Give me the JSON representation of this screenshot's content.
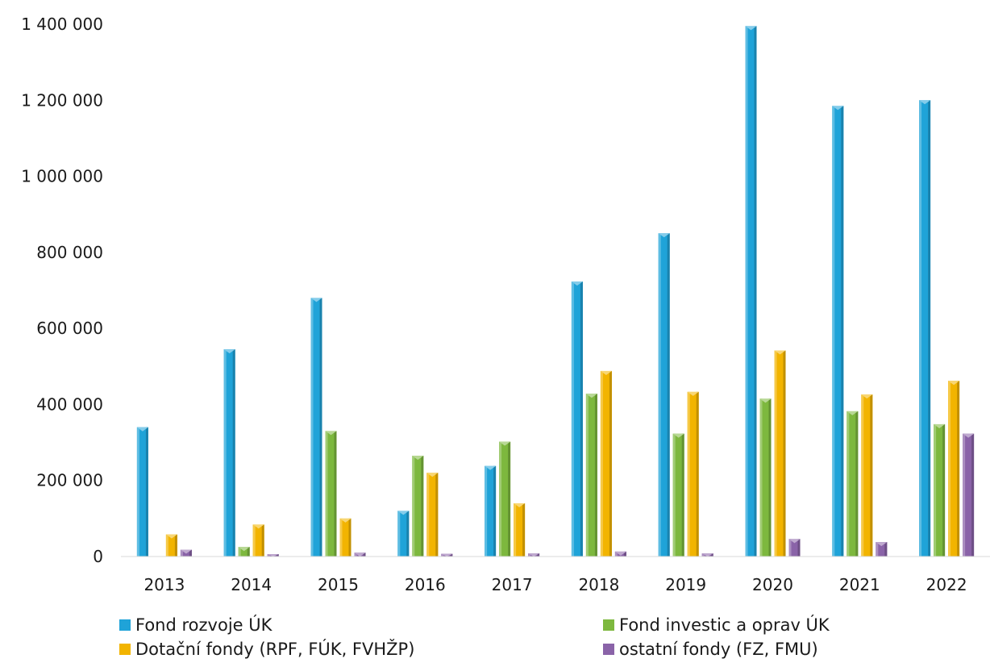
{
  "chart_data": {
    "type": "bar",
    "title": "",
    "xlabel": "",
    "ylabel": "",
    "categories": [
      "2013",
      "2014",
      "2015",
      "2016",
      "2017",
      "2018",
      "2019",
      "2020",
      "2021",
      "2022"
    ],
    "ylim": [
      0,
      1400000
    ],
    "yticks": [
      0,
      200000,
      400000,
      600000,
      800000,
      1000000,
      1200000,
      1400000
    ],
    "ytick_labels": [
      "0",
      "200 000",
      "400 000",
      "600 000",
      "800 000",
      "1 000 000",
      "1 200 000",
      "1 400 000"
    ],
    "grid": false,
    "legend_position": "bottom",
    "series": [
      {
        "name": "Fond rozvoje ÚK",
        "color": "#1fa3d8",
        "values": [
          340000,
          545000,
          680000,
          120000,
          238000,
          723000,
          850000,
          1395000,
          1185000,
          1200000
        ]
      },
      {
        "name": "Fond investic a oprav ÚK",
        "color": "#7db83e",
        "values": [
          0,
          25000,
          330000,
          265000,
          302000,
          428000,
          323000,
          415000,
          382000,
          348000
        ]
      },
      {
        "name": "Dotační fondy (RPF, FÚK, FVHŽP)",
        "color": "#f2b400",
        "values": [
          58000,
          84000,
          100000,
          220000,
          140000,
          488000,
          433000,
          542000,
          426000,
          462000
        ]
      },
      {
        "name": "ostatní fondy (FZ, FMU)",
        "color": "#8a63a8",
        "values": [
          18000,
          6000,
          10000,
          7000,
          8000,
          13000,
          8000,
          46000,
          38000,
          323000
        ]
      }
    ]
  }
}
